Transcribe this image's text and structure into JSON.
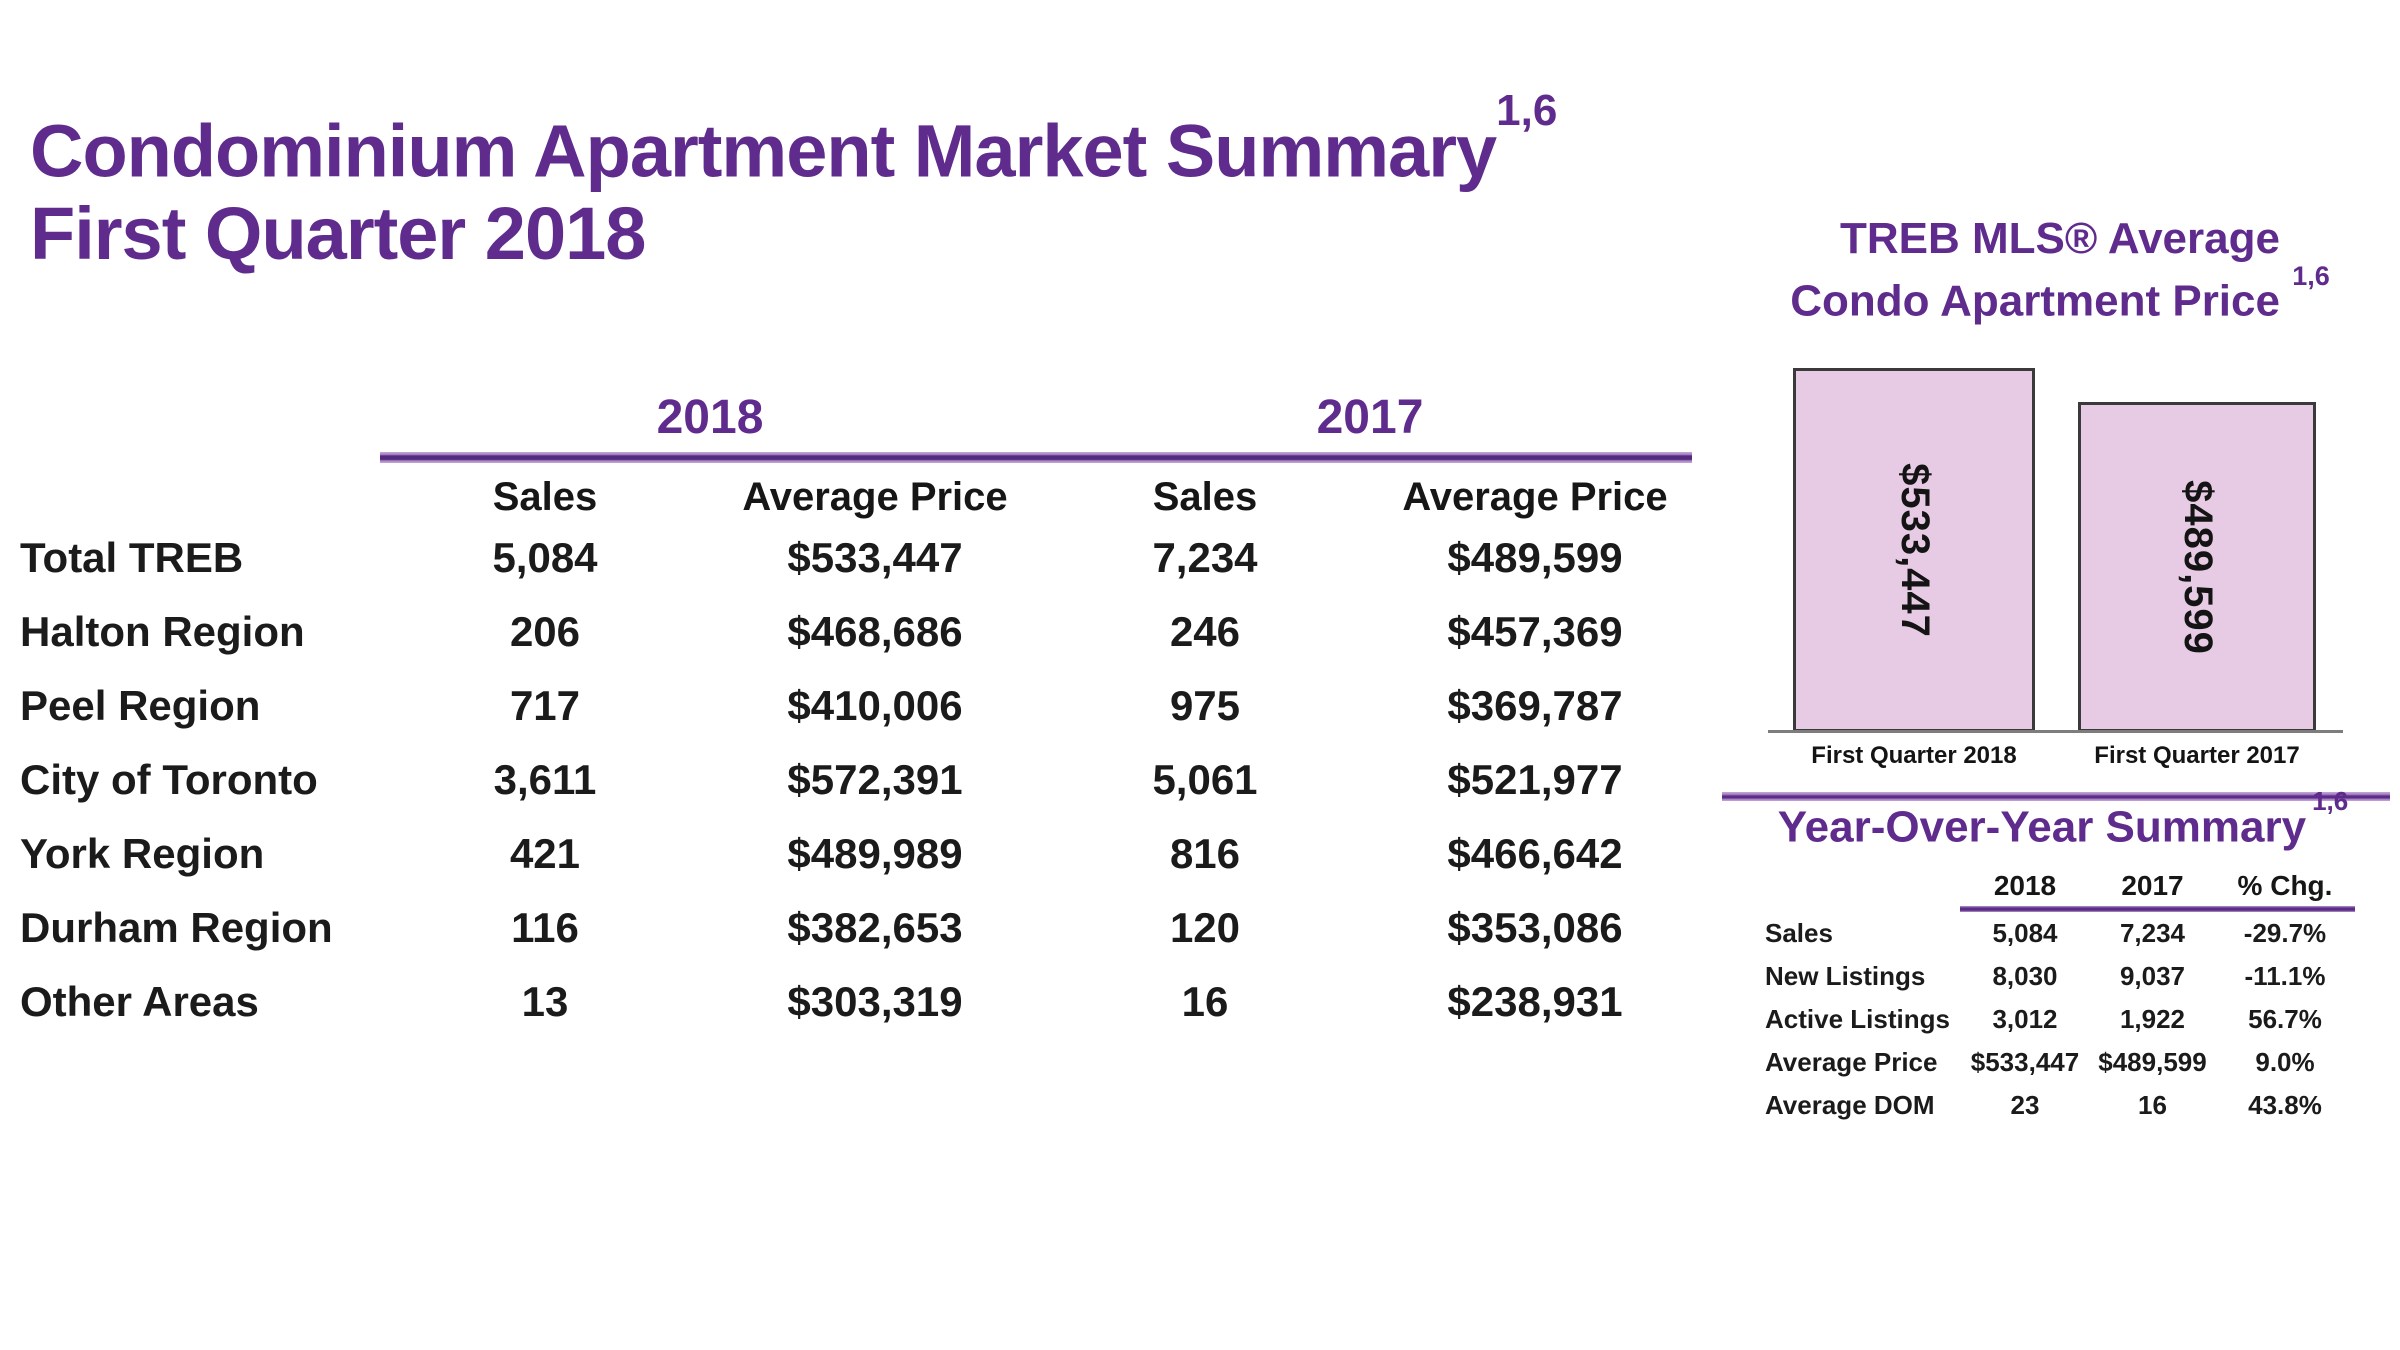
{
  "header": {
    "title_line1": "Condominium Apartment Market Summary",
    "title_sup": "1,6",
    "title_line2": "First Quarter 2018"
  },
  "market_table": {
    "year_headers": [
      "2018",
      "2017"
    ],
    "col_headers": [
      "Sales",
      "Average Price",
      "Sales",
      "Average Price"
    ],
    "rows": [
      {
        "region": "Total TREB",
        "sales_2018": "5,084",
        "avg_price_2018": "$533,447",
        "sales_2017": "7,234",
        "avg_price_2017": "$489,599"
      },
      {
        "region": "Halton Region",
        "sales_2018": "206",
        "avg_price_2018": "$468,686",
        "sales_2017": "246",
        "avg_price_2017": "$457,369"
      },
      {
        "region": "Peel Region",
        "sales_2018": "717",
        "avg_price_2018": "$410,006",
        "sales_2017": "975",
        "avg_price_2017": "$369,787"
      },
      {
        "region": "City of Toronto",
        "sales_2018": "3,611",
        "avg_price_2018": "$572,391",
        "sales_2017": "5,061",
        "avg_price_2017": "$521,977"
      },
      {
        "region": "York Region",
        "sales_2018": "421",
        "avg_price_2018": "$489,989",
        "sales_2017": "816",
        "avg_price_2017": "$466,642"
      },
      {
        "region": "Durham Region",
        "sales_2018": "116",
        "avg_price_2018": "$382,653",
        "sales_2017": "120",
        "avg_price_2017": "$353,086"
      },
      {
        "region": "Other Areas",
        "sales_2018": "13",
        "avg_price_2018": "$303,319",
        "sales_2017": "16",
        "avg_price_2017": "$238,931"
      }
    ]
  },
  "price_chart": {
    "title_line1": "TREB MLS® Average",
    "title_line2": "Condo Apartment Price",
    "title_sup": "1,6",
    "bars": [
      {
        "category": "First Quarter 2018",
        "value_label": "$533,447"
      },
      {
        "category": "First Quarter 2017",
        "value_label": "$489,599"
      }
    ]
  },
  "yoy": {
    "title": "Year-Over-Year Summary",
    "title_sup": "1,6",
    "col_headers": [
      "2018",
      "2017",
      "% Chg."
    ],
    "rows": [
      {
        "label": "Sales",
        "y2018": "5,084",
        "y2017": "7,234",
        "pct_chg": "-29.7%"
      },
      {
        "label": "New Listings",
        "y2018": "8,030",
        "y2017": "9,037",
        "pct_chg": "-11.1%"
      },
      {
        "label": "Active Listings",
        "y2018": "3,012",
        "y2017": "1,922",
        "pct_chg": "56.7%"
      },
      {
        "label": "Average Price",
        "y2018": "$533,447",
        "y2017": "$489,599",
        "pct_chg": "9.0%"
      },
      {
        "label": "Average DOM",
        "y2018": "23",
        "y2017": "16",
        "pct_chg": "43.8%"
      }
    ]
  },
  "colors": {
    "accent_purple": "#5f2b8d",
    "rule_purple_dark": "#542a7f",
    "rule_purple_light": "#b596cd",
    "bar_fill": "#e7cbe4",
    "bar_border": "#3a3a3a",
    "text_black": "#1b1b1b"
  },
  "chart_data": {
    "type": "bar",
    "title": "TREB MLS® Average Condo Apartment Price 1,6",
    "categories": [
      "First Quarter 2018",
      "First Quarter 2017"
    ],
    "values": [
      533447,
      489599
    ],
    "value_labels": [
      "$533,447",
      "$489,599"
    ],
    "xlabel": "",
    "ylabel": "",
    "ylim": [
      0,
      560000
    ],
    "grid": false,
    "legend": false,
    "bar_value_labels_rotated_90deg_inside_bars": true
  }
}
